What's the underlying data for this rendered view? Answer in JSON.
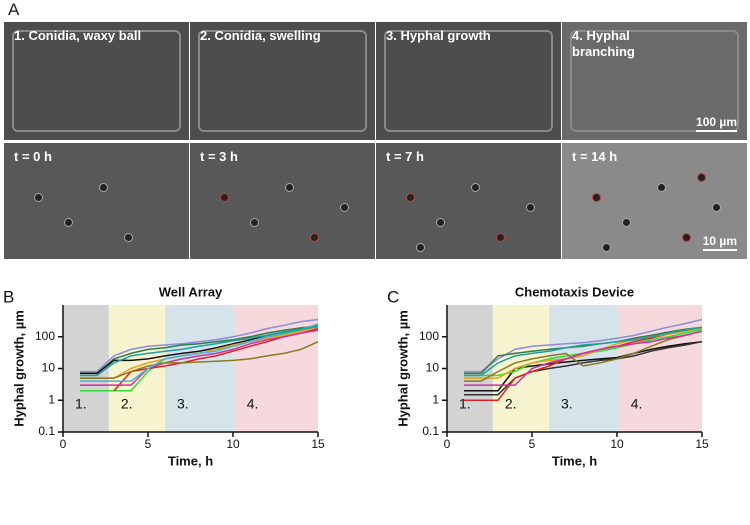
{
  "figure": {
    "panel_label": "A",
    "row1": [
      "1. Conidia, waxy ball",
      "2. Conidia, swelling",
      "3. Hyphal growth",
      "4. Hyphal branching"
    ],
    "row2": [
      "t = 0 h",
      "t = 3 h",
      "t = 7 h",
      "t = 14 h"
    ],
    "scale_bar_top": "100 µm",
    "scale_bar_bottom": "10 µm"
  },
  "chart_data": [
    {
      "type": "line",
      "panel_label": "B",
      "title": "Well Array",
      "xlabel": "Time, h",
      "ylabel": "Hyphal growth, µm",
      "log_y": true,
      "xlim": [
        0,
        15
      ],
      "xticks": [
        0,
        5,
        10,
        15
      ],
      "ylim": [
        0.1,
        1000
      ],
      "yticks": [
        0.1,
        1,
        10,
        100
      ],
      "regions": [
        {
          "label": "1.",
          "start": 0,
          "end": 2.7,
          "color": "#d3d3d3"
        },
        {
          "label": "2.",
          "start": 2.7,
          "end": 6,
          "color": "#f6f4cf"
        },
        {
          "label": "3.",
          "start": 6,
          "end": 10.1,
          "color": "#d6e3ea"
        },
        {
          "label": "4.",
          "start": 10.1,
          "end": 15,
          "color": "#f5d9dc"
        }
      ],
      "x": [
        1,
        2,
        3,
        4,
        5,
        6,
        7,
        8,
        9,
        10,
        11,
        12,
        13,
        14,
        15
      ],
      "series": [
        {
          "color": "#8c8cd8",
          "values": [
            8,
            8,
            25,
            40,
            50,
            55,
            60,
            70,
            80,
            100,
            130,
            180,
            230,
            300,
            350
          ]
        },
        {
          "color": "#2e7d4f",
          "values": [
            7,
            7,
            20,
            30,
            40,
            45,
            55,
            60,
            70,
            80,
            100,
            130,
            160,
            190,
            220
          ]
        },
        {
          "color": "#111111",
          "values": [
            7,
            7,
            18,
            18,
            20,
            25,
            30,
            35,
            45,
            60,
            80,
            110,
            140,
            170,
            200
          ]
        },
        {
          "color": "#33dd33",
          "values": [
            2,
            2,
            2,
            2,
            8,
            20,
            25,
            30,
            40,
            50,
            70,
            90,
            120,
            160,
            250
          ]
        },
        {
          "color": "#e02020",
          "values": [
            null,
            null,
            2,
            8,
            10,
            12,
            15,
            20,
            25,
            35,
            50,
            70,
            100,
            130,
            180
          ]
        },
        {
          "color": "#e8a020",
          "values": [
            5,
            5,
            5,
            10,
            15,
            20,
            25,
            30,
            40,
            55,
            70,
            90,
            110,
            150,
            200
          ]
        },
        {
          "color": "#d030a0",
          "values": [
            3,
            3,
            3,
            3,
            10,
            15,
            20,
            25,
            30,
            40,
            60,
            80,
            100,
            130,
            160
          ]
        },
        {
          "color": "#8a7a20",
          "values": [
            5,
            5,
            5,
            8,
            12,
            15,
            15,
            16,
            17,
            18,
            20,
            25,
            30,
            40,
            70
          ]
        },
        {
          "color": "#4ab0e0",
          "values": [
            4,
            4,
            4,
            4,
            10,
            20,
            25,
            30,
            35,
            50,
            70,
            100,
            130,
            170,
            250
          ]
        },
        {
          "color": "#20a0a0",
          "values": [
            6,
            6,
            15,
            25,
            30,
            35,
            40,
            50,
            60,
            75,
            90,
            110,
            140,
            170,
            210
          ]
        }
      ]
    },
    {
      "type": "line",
      "panel_label": "C",
      "title": "Chemotaxis Device",
      "xlabel": "Time, h",
      "ylabel": "Hyphal growth, µm",
      "log_y": true,
      "xlim": [
        0,
        15
      ],
      "xticks": [
        0,
        5,
        10,
        15
      ],
      "ylim": [
        0.1,
        1000
      ],
      "yticks": [
        0.1,
        1,
        10,
        100
      ],
      "regions": [
        {
          "label": "1.",
          "start": 0,
          "end": 2.7,
          "color": "#d3d3d3"
        },
        {
          "label": "2.",
          "start": 2.7,
          "end": 6,
          "color": "#f6f4cf"
        },
        {
          "label": "3.",
          "start": 6,
          "end": 10.1,
          "color": "#d6e3ea"
        },
        {
          "label": "4.",
          "start": 10.1,
          "end": 15,
          "color": "#f5d9dc"
        }
      ],
      "x": [
        1,
        2,
        3,
        4,
        5,
        6,
        7,
        8,
        9,
        10,
        11,
        12,
        13,
        14,
        15
      ],
      "series": [
        {
          "color": "#8c8cd8",
          "values": [
            8,
            8,
            20,
            40,
            50,
            55,
            60,
            65,
            75,
            90,
            110,
            150,
            200,
            260,
            350
          ]
        },
        {
          "color": "#2e7d4f",
          "values": [
            7,
            7,
            25,
            30,
            35,
            40,
            45,
            50,
            60,
            70,
            90,
            110,
            140,
            170,
            200
          ]
        },
        {
          "color": "#111111",
          "values": [
            2,
            2,
            2,
            10,
            12,
            14,
            16,
            18,
            20,
            22,
            30,
            40,
            50,
            60,
            70
          ]
        },
        {
          "color": "#333333",
          "values": [
            1.5,
            1.5,
            1.5,
            5,
            8,
            10,
            12,
            15,
            18,
            20,
            25,
            35,
            45,
            55,
            70
          ]
        },
        {
          "color": "#33dd33",
          "values": [
            6,
            6,
            6,
            8,
            15,
            20,
            25,
            30,
            35,
            45,
            60,
            80,
            100,
            130,
            170
          ]
        },
        {
          "color": "#e02020",
          "values": [
            1,
            1,
            1,
            5,
            8,
            12,
            20,
            30,
            40,
            50,
            70,
            90,
            120,
            150,
            200
          ]
        },
        {
          "color": "#e8a020",
          "values": [
            5,
            5,
            5,
            10,
            15,
            18,
            20,
            25,
            40,
            60,
            80,
            100,
            120,
            150,
            190
          ]
        },
        {
          "color": "#8a7a20",
          "values": [
            4,
            4,
            8,
            15,
            20,
            25,
            30,
            12,
            15,
            20,
            30,
            50,
            80,
            110,
            150
          ]
        },
        {
          "color": "#d030a0",
          "values": [
            3,
            3,
            3,
            3,
            10,
            15,
            20,
            30,
            40,
            50,
            60,
            70,
            90,
            110,
            150
          ]
        },
        {
          "color": "#20a0a0",
          "values": [
            6,
            6,
            15,
            25,
            30,
            35,
            45,
            55,
            60,
            70,
            80,
            100,
            130,
            160,
            200
          ]
        }
      ]
    }
  ]
}
